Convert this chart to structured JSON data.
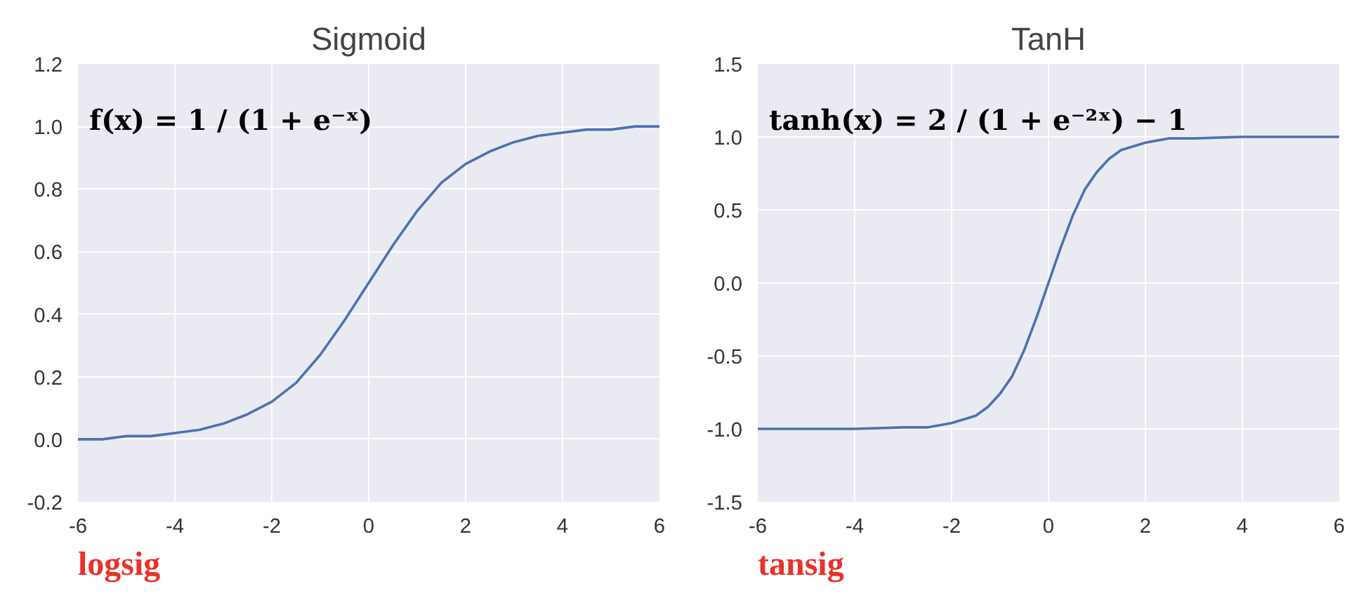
{
  "chart_data": [
    {
      "type": "line",
      "title": "Sigmoid",
      "x": [
        -6,
        -5.5,
        -5,
        -4.5,
        -4,
        -3.5,
        -3,
        -2.5,
        -2,
        -1.5,
        -1,
        -0.5,
        0,
        0.5,
        1,
        1.5,
        2,
        2.5,
        3,
        3.5,
        4,
        4.5,
        5,
        5.5,
        6
      ],
      "series": [
        {
          "color": "#4c72b0",
          "values": [
            0.0,
            0.0,
            0.01,
            0.01,
            0.02,
            0.03,
            0.05,
            0.08,
            0.12,
            0.18,
            0.27,
            0.38,
            0.5,
            0.62,
            0.73,
            0.82,
            0.88,
            0.92,
            0.95,
            0.97,
            0.98,
            0.99,
            0.99,
            1.0,
            1.0
          ]
        }
      ],
      "xlim": [
        -6,
        6
      ],
      "xticks": [
        -6,
        -4,
        -2,
        0,
        2,
        4,
        6
      ],
      "ylim": [
        -0.2,
        1.2
      ],
      "yticks": [
        -0.2,
        {
          "value": 0,
          "label": "0.0"
        },
        0.2,
        0.4,
        0.6,
        0.8,
        {
          "value": 1,
          "label": "1.0"
        },
        1.2
      ],
      "grid": true,
      "line_style": "solid",
      "annotations": [
        "f(x) = 1 / (1 + e⁻ˣ)",
        "logsig"
      ]
    },
    {
      "type": "line",
      "title": "TanH",
      "x": [
        -6,
        -5,
        -4,
        -3,
        -2.5,
        -2,
        -1.5,
        -1.25,
        -1,
        -0.75,
        -0.5,
        -0.25,
        0,
        0.25,
        0.5,
        0.75,
        1,
        1.25,
        1.5,
        2,
        2.5,
        3,
        4,
        5,
        6
      ],
      "series": [
        {
          "color": "#4c72b0",
          "values": [
            -1.0,
            -1.0,
            -1.0,
            -0.99,
            -0.99,
            -0.96,
            -0.91,
            -0.85,
            -0.76,
            -0.64,
            -0.46,
            -0.24,
            0,
            0.24,
            0.46,
            0.64,
            0.76,
            0.85,
            0.91,
            0.96,
            0.99,
            0.99,
            1.0,
            1.0,
            1.0
          ]
        }
      ],
      "xlim": [
        -6,
        6
      ],
      "xticks": [
        -6,
        -4,
        -2,
        0,
        2,
        4,
        6
      ],
      "ylim": [
        -1.5,
        1.5
      ],
      "yticks": [
        -1.5,
        {
          "value": -1,
          "label": "-1.0"
        },
        -0.5,
        {
          "value": 0,
          "label": "0.0"
        },
        0.5,
        {
          "value": 1,
          "label": "1.0"
        },
        1.5
      ],
      "grid": true,
      "line_style": "solid",
      "annotations": [
        "tanh(x) = 2 / (1 + e⁻²ˣ) − 1",
        "tansig"
      ]
    }
  ]
}
